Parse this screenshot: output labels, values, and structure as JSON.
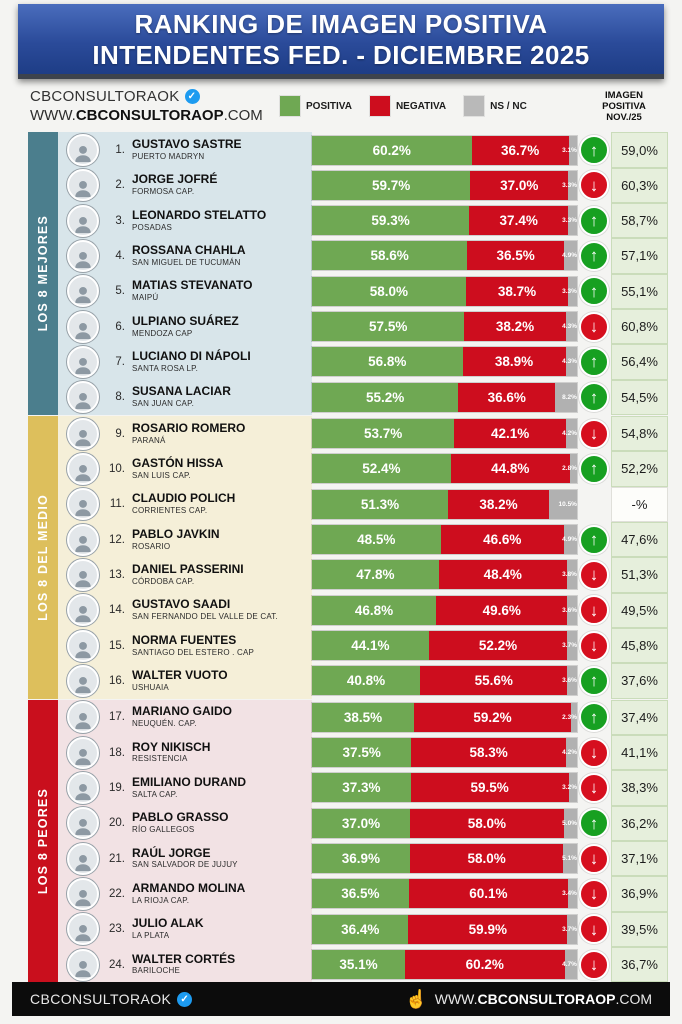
{
  "header": {
    "title_line1": "RANKING DE IMAGEN POSITIVA",
    "title_line2": "INTENDENTES FED. - DICIEMBRE 2025"
  },
  "brand": {
    "name": "CBCONSULTORAOK",
    "url_prefix": "WWW.",
    "url_bold": "CBCONSULTORAOP",
    "url_suffix": ".COM"
  },
  "legend": [
    {
      "label": "POSITIVA",
      "color": "#6fa853"
    },
    {
      "label": "NEGATIVA",
      "color": "#cd0d1e"
    },
    {
      "label": "NS / NC",
      "color": "#b9b9b9"
    }
  ],
  "prev_column": {
    "line1": "IMAGEN",
    "line2": "POSITIVA",
    "line3": "NOV./25"
  },
  "icons": {
    "verified": "✓",
    "hand": "☝",
    "up": "↑",
    "down": "↓"
  },
  "groups": [
    {
      "label": "LOS 8 MEJORES",
      "strip_color": "#4b7e8d",
      "band_color": "#d8e5ea",
      "rows": [
        {
          "rank": "1.",
          "name": "GUSTAVO SASTRE",
          "city": "PUERTO MADRYN",
          "positiva": 60.2,
          "negativa": 36.7,
          "nsnc": 3.1,
          "trend": "up",
          "prev": "59,0%"
        },
        {
          "rank": "2.",
          "name": "JORGE JOFRÉ",
          "city": "FORMOSA CAP.",
          "positiva": 59.7,
          "negativa": 37.0,
          "nsnc": 3.3,
          "trend": "down",
          "prev": "60,3%"
        },
        {
          "rank": "3.",
          "name": "LEONARDO STELATTO",
          "city": "POSADAS",
          "positiva": 59.3,
          "negativa": 37.4,
          "nsnc": 3.3,
          "trend": "up",
          "prev": "58,7%"
        },
        {
          "rank": "4.",
          "name": "ROSSANA CHAHLA",
          "city": "SAN MIGUEL DE TUCUMÁN",
          "positiva": 58.6,
          "negativa": 36.5,
          "nsnc": 4.9,
          "trend": "up",
          "prev": "57,1%"
        },
        {
          "rank": "5.",
          "name": "MATIAS STEVANATO",
          "city": "MAIPÚ",
          "positiva": 58.0,
          "negativa": 38.7,
          "nsnc": 3.3,
          "trend": "up",
          "prev": "55,1%"
        },
        {
          "rank": "6.",
          "name": "ULPIANO SUÁREZ",
          "city": "MENDOZA CAP",
          "positiva": 57.5,
          "negativa": 38.2,
          "nsnc": 4.3,
          "trend": "down",
          "prev": "60,8%"
        },
        {
          "rank": "7.",
          "name": "LUCIANO DI NÁPOLI",
          "city": "SANTA ROSA LP.",
          "positiva": 56.8,
          "negativa": 38.9,
          "nsnc": 4.3,
          "trend": "up",
          "prev": "56,4%"
        },
        {
          "rank": "8.",
          "name": "SUSANA LACIAR",
          "city": "SAN JUAN CAP.",
          "positiva": 55.2,
          "negativa": 36.6,
          "nsnc": 8.2,
          "trend": "up",
          "prev": "54,5%"
        }
      ]
    },
    {
      "label": "LOS 8 DEL MEDIO",
      "strip_color": "#ddbf5c",
      "band_color": "#f5efd8",
      "rows": [
        {
          "rank": "9.",
          "name": "ROSARIO ROMERO",
          "city": "PARANÁ",
          "positiva": 53.7,
          "negativa": 42.1,
          "nsnc": 4.2,
          "trend": "down",
          "prev": "54,8%"
        },
        {
          "rank": "10.",
          "name": "GASTÓN HISSA",
          "city": "SAN LUIS CAP.",
          "positiva": 52.4,
          "negativa": 44.8,
          "nsnc": 2.8,
          "trend": "up",
          "prev": "52,2%"
        },
        {
          "rank": "11.",
          "name": "CLAUDIO POLICH",
          "city": "CORRIENTES CAP.",
          "positiva": 51.3,
          "negativa": 38.2,
          "nsnc": 10.5,
          "trend": "none",
          "prev": "-%"
        },
        {
          "rank": "12.",
          "name": "PABLO JAVKIN",
          "city": "ROSARIO",
          "positiva": 48.5,
          "negativa": 46.6,
          "nsnc": 4.9,
          "trend": "up",
          "prev": "47,6%"
        },
        {
          "rank": "13.",
          "name": "DANIEL PASSERINI",
          "city": "CÓRDOBA CAP.",
          "positiva": 47.8,
          "negativa": 48.4,
          "nsnc": 3.8,
          "trend": "down",
          "prev": "51,3%"
        },
        {
          "rank": "14.",
          "name": "GUSTAVO SAADI",
          "city": "SAN FERNANDO DEL VALLE DE CAT.",
          "positiva": 46.8,
          "negativa": 49.6,
          "nsnc": 3.6,
          "trend": "down",
          "prev": "49,5%"
        },
        {
          "rank": "15.",
          "name": "NORMA FUENTES",
          "city": "SANTIAGO DEL ESTERO . CAP",
          "positiva": 44.1,
          "negativa": 52.2,
          "nsnc": 3.7,
          "trend": "down",
          "prev": "45,8%"
        },
        {
          "rank": "16.",
          "name": "WALTER VUOTO",
          "city": "USHUAIA",
          "positiva": 40.8,
          "negativa": 55.6,
          "nsnc": 3.6,
          "trend": "up",
          "prev": "37,6%"
        }
      ]
    },
    {
      "label": "LOS 8 PEORES",
      "strip_color": "#c90f1d",
      "band_color": "#f2e2e4",
      "rows": [
        {
          "rank": "17.",
          "name": "MARIANO GAIDO",
          "city": "NEUQUÉN. CAP.",
          "positiva": 38.5,
          "negativa": 59.2,
          "nsnc": 2.3,
          "trend": "up",
          "prev": "37,4%"
        },
        {
          "rank": "18.",
          "name": "ROY NIKISCH",
          "city": "RESISTENCIA",
          "positiva": 37.5,
          "negativa": 58.3,
          "nsnc": 4.2,
          "trend": "down",
          "prev": "41,1%"
        },
        {
          "rank": "19.",
          "name": "EMILIANO DURAND",
          "city": "SALTA CAP.",
          "positiva": 37.3,
          "negativa": 59.5,
          "nsnc": 3.2,
          "trend": "down",
          "prev": "38,3%"
        },
        {
          "rank": "20.",
          "name": "PABLO GRASSO",
          "city": "RÍO GALLEGOS",
          "positiva": 37.0,
          "negativa": 58.0,
          "nsnc": 5.0,
          "trend": "up",
          "prev": "36,2%"
        },
        {
          "rank": "21.",
          "name": "RAÚL JORGE",
          "city": "SAN SALVADOR DE JUJUY",
          "positiva": 36.9,
          "negativa": 58.0,
          "nsnc": 5.1,
          "trend": "down",
          "prev": "37,1%"
        },
        {
          "rank": "22.",
          "name": "ARMANDO MOLINA",
          "city": "LA RIOJA CAP.",
          "positiva": 36.5,
          "negativa": 60.1,
          "nsnc": 3.4,
          "trend": "down",
          "prev": "36,9%"
        },
        {
          "rank": "23.",
          "name": "JULIO ALAK",
          "city": "LA PLATA",
          "positiva": 36.4,
          "negativa": 59.9,
          "nsnc": 3.7,
          "trend": "down",
          "prev": "39,5%"
        },
        {
          "rank": "24.",
          "name": "WALTER CORTÉS",
          "city": "BARILOCHE",
          "positiva": 35.1,
          "negativa": 60.2,
          "nsnc": 4.7,
          "trend": "down",
          "prev": "36,7%"
        }
      ]
    }
  ],
  "footer": {
    "brand": "CBCONSULTORAOK",
    "url_prefix": "WWW.",
    "url_bold": "CBCONSULTORAOP",
    "url_suffix": ".COM"
  },
  "chart_data": {
    "type": "bar",
    "orientation": "horizontal",
    "stacked": true,
    "title": "RANKING DE IMAGEN POSITIVA INTENDENTES FED. - DICIEMBRE 2025",
    "xlabel": "",
    "ylabel": "",
    "xlim": [
      0,
      100
    ],
    "grid": false,
    "legend_position": "top",
    "categories": [
      "GUSTAVO SASTRE (PUERTO MADRYN)",
      "JORGE JOFRÉ (FORMOSA CAP.)",
      "LEONARDO STELATTO (POSADAS)",
      "ROSSANA CHAHLA (SAN MIGUEL DE TUCUMÁN)",
      "MATIAS STEVANATO (MAIPÚ)",
      "ULPIANO SUÁREZ (MENDOZA CAP)",
      "LUCIANO DI NÁPOLI (SANTA ROSA LP.)",
      "SUSANA LACIAR (SAN JUAN CAP.)",
      "ROSARIO ROMERO (PARANÁ)",
      "GASTÓN HISSA (SAN LUIS CAP.)",
      "CLAUDIO POLICH (CORRIENTES CAP.)",
      "PABLO JAVKIN (ROSARIO)",
      "DANIEL PASSERINI (CÓRDOBA CAP.)",
      "GUSTAVO SAADI (SAN FERNANDO DEL VALLE DE CAT.)",
      "NORMA FUENTES (SANTIAGO DEL ESTERO . CAP)",
      "WALTER VUOTO (USHUAIA)",
      "MARIANO GAIDO (NEUQUÉN. CAP.)",
      "ROY NIKISCH (RESISTENCIA)",
      "EMILIANO DURAND (SALTA CAP.)",
      "PABLO GRASSO (RÍO GALLEGOS)",
      "RAÚL JORGE (SAN SALVADOR DE JUJUY)",
      "ARMANDO MOLINA (LA RIOJA CAP.)",
      "JULIO ALAK (LA PLATA)",
      "WALTER CORTÉS (BARILOCHE)"
    ],
    "series": [
      {
        "name": "POSITIVA",
        "color": "#6fa853",
        "values": [
          60.2,
          59.7,
          59.3,
          58.6,
          58.0,
          57.5,
          56.8,
          55.2,
          53.7,
          52.4,
          51.3,
          48.5,
          47.8,
          46.8,
          44.1,
          40.8,
          38.5,
          37.5,
          37.3,
          37.0,
          36.9,
          36.5,
          36.4,
          35.1
        ]
      },
      {
        "name": "NEGATIVA",
        "color": "#cd0d1e",
        "values": [
          36.7,
          37.0,
          37.4,
          36.5,
          38.7,
          38.2,
          38.9,
          36.6,
          42.1,
          44.8,
          38.2,
          46.6,
          48.4,
          49.6,
          52.2,
          55.6,
          59.2,
          58.3,
          59.5,
          58.0,
          58.0,
          60.1,
          59.9,
          60.2
        ]
      },
      {
        "name": "NS / NC",
        "color": "#b9b9b9",
        "values": [
          3.1,
          3.3,
          3.3,
          4.9,
          3.3,
          4.3,
          4.3,
          8.2,
          4.2,
          2.8,
          10.5,
          4.9,
          3.8,
          3.6,
          3.7,
          3.6,
          2.3,
          4.2,
          3.2,
          5.0,
          5.1,
          3.4,
          3.7,
          4.7
        ]
      }
    ],
    "annotations": {
      "imagen_positiva_nov_25": [
        "59,0%",
        "60,3%",
        "58,7%",
        "57,1%",
        "55,1%",
        "60,8%",
        "56,4%",
        "54,5%",
        "54,8%",
        "52,2%",
        "-%",
        "47,6%",
        "51,3%",
        "49,5%",
        "45,8%",
        "37,6%",
        "37,4%",
        "41,1%",
        "38,3%",
        "36,2%",
        "37,1%",
        "36,9%",
        "39,5%",
        "36,7%"
      ],
      "trend_vs_previous": [
        "up",
        "down",
        "up",
        "up",
        "up",
        "down",
        "up",
        "up",
        "down",
        "up",
        "none",
        "up",
        "down",
        "down",
        "down",
        "up",
        "up",
        "down",
        "down",
        "up",
        "down",
        "down",
        "down",
        "down"
      ],
      "group_bands": [
        "LOS 8 MEJORES",
        "LOS 8 DEL MEDIO",
        "LOS 8 PEORES"
      ]
    }
  }
}
